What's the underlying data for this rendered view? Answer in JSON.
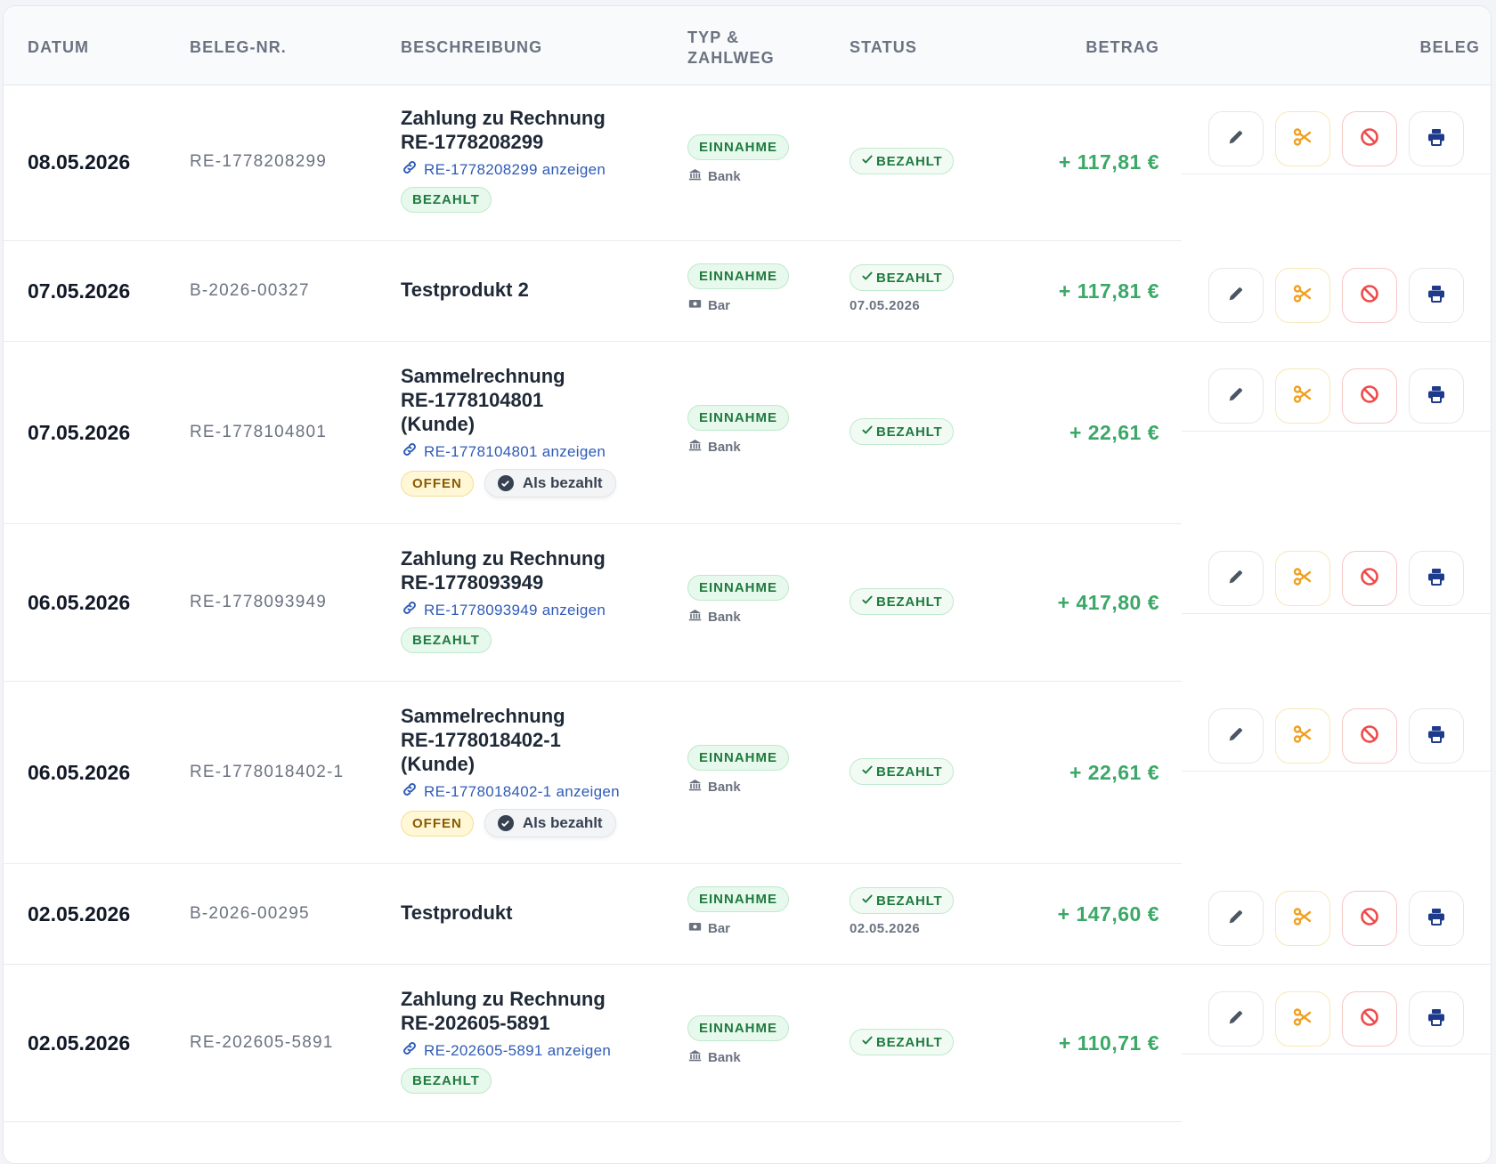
{
  "columns": {
    "datum": "DATUM",
    "beleg_nr": "BELEG-NR.",
    "beschreibung": "BESCHREIBUNG",
    "typ_line1": "TYP &",
    "typ_line2": "ZAHLWEG",
    "status": "STATUS",
    "betrag": "BETRAG",
    "beleg": "BELEG"
  },
  "rows": [
    {
      "date": "08.05.2026",
      "beleg": "RE-1778208299",
      "title_lines": [
        "Zahlung zu Rechnung",
        "RE-1778208299"
      ],
      "link": "RE-1778208299 anzeigen",
      "invoice_status": "BEZAHLT",
      "mark_paid": "",
      "type": "EINNAHME",
      "method": "Bank",
      "status": "BEZAHLT",
      "status_date": "",
      "amount": "+ 117,81 €"
    },
    {
      "date": "07.05.2026",
      "beleg": "B-2026-00327",
      "title_lines": [
        "Testprodukt 2"
      ],
      "link": "",
      "invoice_status": "",
      "mark_paid": "",
      "type": "EINNAHME",
      "method": "Bar",
      "status": "BEZAHLT",
      "status_date": "07.05.2026",
      "amount": "+ 117,81 €"
    },
    {
      "date": "07.05.2026",
      "beleg": "RE-1778104801",
      "title_lines": [
        "Sammelrechnung",
        "RE-1778104801",
        "(Kunde)"
      ],
      "link": "RE-1778104801 anzeigen",
      "invoice_status": "OFFEN",
      "mark_paid": "Als bezahlt",
      "type": "EINNAHME",
      "method": "Bank",
      "status": "BEZAHLT",
      "status_date": "",
      "amount": "+ 22,61 €"
    },
    {
      "date": "06.05.2026",
      "beleg": "RE-1778093949",
      "title_lines": [
        "Zahlung zu Rechnung",
        "RE-1778093949"
      ],
      "link": "RE-1778093949 anzeigen",
      "invoice_status": "BEZAHLT",
      "mark_paid": "",
      "type": "EINNAHME",
      "method": "Bank",
      "status": "BEZAHLT",
      "status_date": "",
      "amount": "+ 417,80 €"
    },
    {
      "date": "06.05.2026",
      "beleg": "RE-1778018402-1",
      "title_lines": [
        "Sammelrechnung",
        "RE-1778018402-1",
        "(Kunde)"
      ],
      "link": "RE-1778018402-1 anzeigen",
      "invoice_status": "OFFEN",
      "mark_paid": "Als bezahlt",
      "type": "EINNAHME",
      "method": "Bank",
      "status": "BEZAHLT",
      "status_date": "",
      "amount": "+ 22,61 €"
    },
    {
      "date": "02.05.2026",
      "beleg": "B-2026-00295",
      "title_lines": [
        "Testprodukt"
      ],
      "link": "",
      "invoice_status": "",
      "mark_paid": "",
      "type": "EINNAHME",
      "method": "Bar",
      "status": "BEZAHLT",
      "status_date": "02.05.2026",
      "amount": "+ 147,60 €"
    },
    {
      "date": "02.05.2026",
      "beleg": "RE-202605-5891",
      "title_lines": [
        "Zahlung zu Rechnung",
        "RE-202605-5891"
      ],
      "link": "RE-202605-5891 anzeigen",
      "invoice_status": "BEZAHLT",
      "mark_paid": "",
      "type": "EINNAHME",
      "method": "Bank",
      "status": "BEZAHLT",
      "status_date": "",
      "amount": "+ 110,71 €"
    }
  ],
  "icons": {
    "edit": "pencil-icon",
    "cut": "scissors-icon",
    "cancel": "ban-icon",
    "print": "printer-icon",
    "link": "link-icon",
    "bank": "bank-icon",
    "cash": "cash-icon",
    "check": "check-icon"
  },
  "colors": {
    "amount_green": "#3aa866",
    "pill_green_bg": "#e7f8ec",
    "pill_yellow_bg": "#fff7d6",
    "cut_orange": "#f0a020",
    "cancel_red": "#ef4b4b",
    "print_blue": "#1e3a8a",
    "link_blue": "#2f5bb7"
  }
}
